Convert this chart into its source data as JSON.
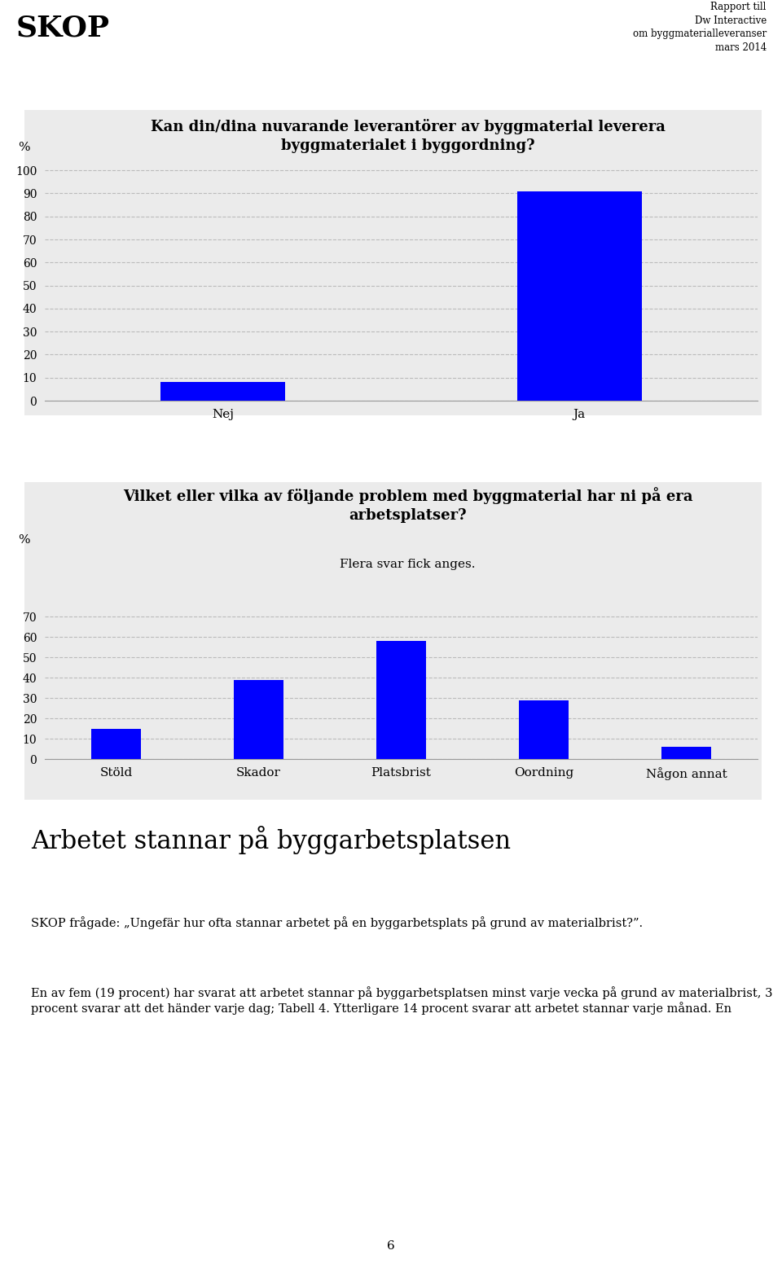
{
  "header_skop": "SKOP",
  "header_right_line1": "Rapport till",
  "header_right_line2": "Dw Interactive",
  "header_right_line3": "om byggmaterialleveranser",
  "header_right_line4": "mars 2014",
  "chart1_title_line1": "Kan din/dina nuvarande leverantörer av byggmaterial leverera",
  "chart1_title_line2": "byggmaterialet i byggordning?",
  "chart1_ylabel": "%",
  "chart1_categories": [
    "Nej",
    "Ja"
  ],
  "chart1_values": [
    8,
    91
  ],
  "chart1_yticks": [
    0,
    10,
    20,
    30,
    40,
    50,
    60,
    70,
    80,
    90,
    100
  ],
  "chart1_ylim": [
    0,
    105
  ],
  "chart1_bar_color": "#0000ff",
  "chart1_bar_width": 0.35,
  "chart2_title_line1": "Vilket eller vilka av följande problem med byggmaterial har ni på era",
  "chart2_title_line2": "arbetsplatser?",
  "chart2_subtitle": "Flera svar fick anges.",
  "chart2_ylabel": "%",
  "chart2_categories": [
    "Stöld",
    "Skador",
    "Platsbrist",
    "Oordning",
    "Någon annat"
  ],
  "chart2_values": [
    15,
    39,
    58,
    29,
    6
  ],
  "chart2_yticks": [
    0,
    10,
    20,
    30,
    40,
    50,
    60,
    70
  ],
  "chart2_ylim": [
    0,
    74
  ],
  "chart2_bar_color": "#0000ff",
  "chart2_bar_width": 0.35,
  "text_heading": "Arbetet stannar på byggarbetsplatsen",
  "text_subheading": "SKOP frågade: „Ungefär hur ofta stannar arbetet på en byggarbetsplats på grund av materialbrist?”.",
  "text_body": "En av fem (19 procent) har svarat att arbetet stannar på byggarbetsplatsen minst varje vecka på grund av materialbrist, 3 procent svarar att det händer varje dag; Tabell 4. Ytterligare 14 procent svarar att arbetet stannar varje månad. En",
  "page_number": "6",
  "bg_color": "#ffffff",
  "chart_bg_color": "#ebebeb",
  "grid_color": "#bbbbbb",
  "text_color": "#000000",
  "separator_color": "#222222"
}
